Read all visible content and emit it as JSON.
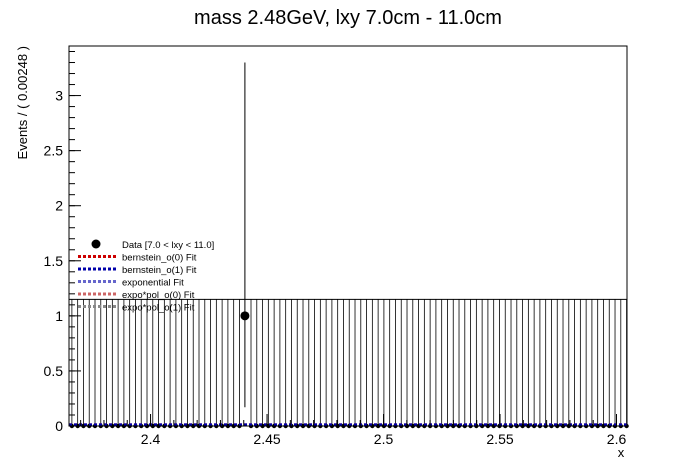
{
  "chart_data": {
    "type": "scatter",
    "title": "mass 2.48GeV, lxy 7.0cm - 11.0cm",
    "xlabel": "x",
    "ylabel": "Events / ( 0.00248 )",
    "xlim": [
      2.365,
      2.6045
    ],
    "ylim": [
      0,
      3.45
    ],
    "x_ticks": [
      "2.4",
      "2.45",
      "2.5",
      "2.55",
      "2.6"
    ],
    "y_ticks": [
      "0",
      "0.5",
      "1",
      "1.5",
      "2",
      "2.5",
      "3"
    ],
    "bin_width": 0.00248,
    "data_points": [
      {
        "x": 2.4405,
        "y": 1,
        "err_low": 0.83,
        "err_high": 2.3
      }
    ],
    "zero_bin_err_high": 1.15,
    "legend": {
      "placement": "middle-left",
      "entries": [
        {
          "label": "Data [7.0 < lxy < 11.0]",
          "color": "#000000",
          "style": "marker"
        },
        {
          "label": "bernstein_o(0) Fit",
          "color": "#cc0000",
          "style": "dotted"
        },
        {
          "label": "bernstein_o(1) Fit",
          "color": "#0000aa",
          "style": "dotted"
        },
        {
          "label": "exponential Fit",
          "color": "#6666cc",
          "style": "dotted"
        },
        {
          "label": "expo*pol_o(0) Fit",
          "color": "#cc6666",
          "style": "dotted"
        },
        {
          "label": "expo*pol_o(1) Fit",
          "color": "#888888",
          "style": "dotted"
        }
      ]
    },
    "fit_lines": [
      {
        "name": "bernstein_o(0) Fit",
        "y": 0.01,
        "color": "#cc0000"
      },
      {
        "name": "bernstein_o(1) Fit",
        "y": 0.01,
        "color": "#0000aa"
      }
    ]
  }
}
